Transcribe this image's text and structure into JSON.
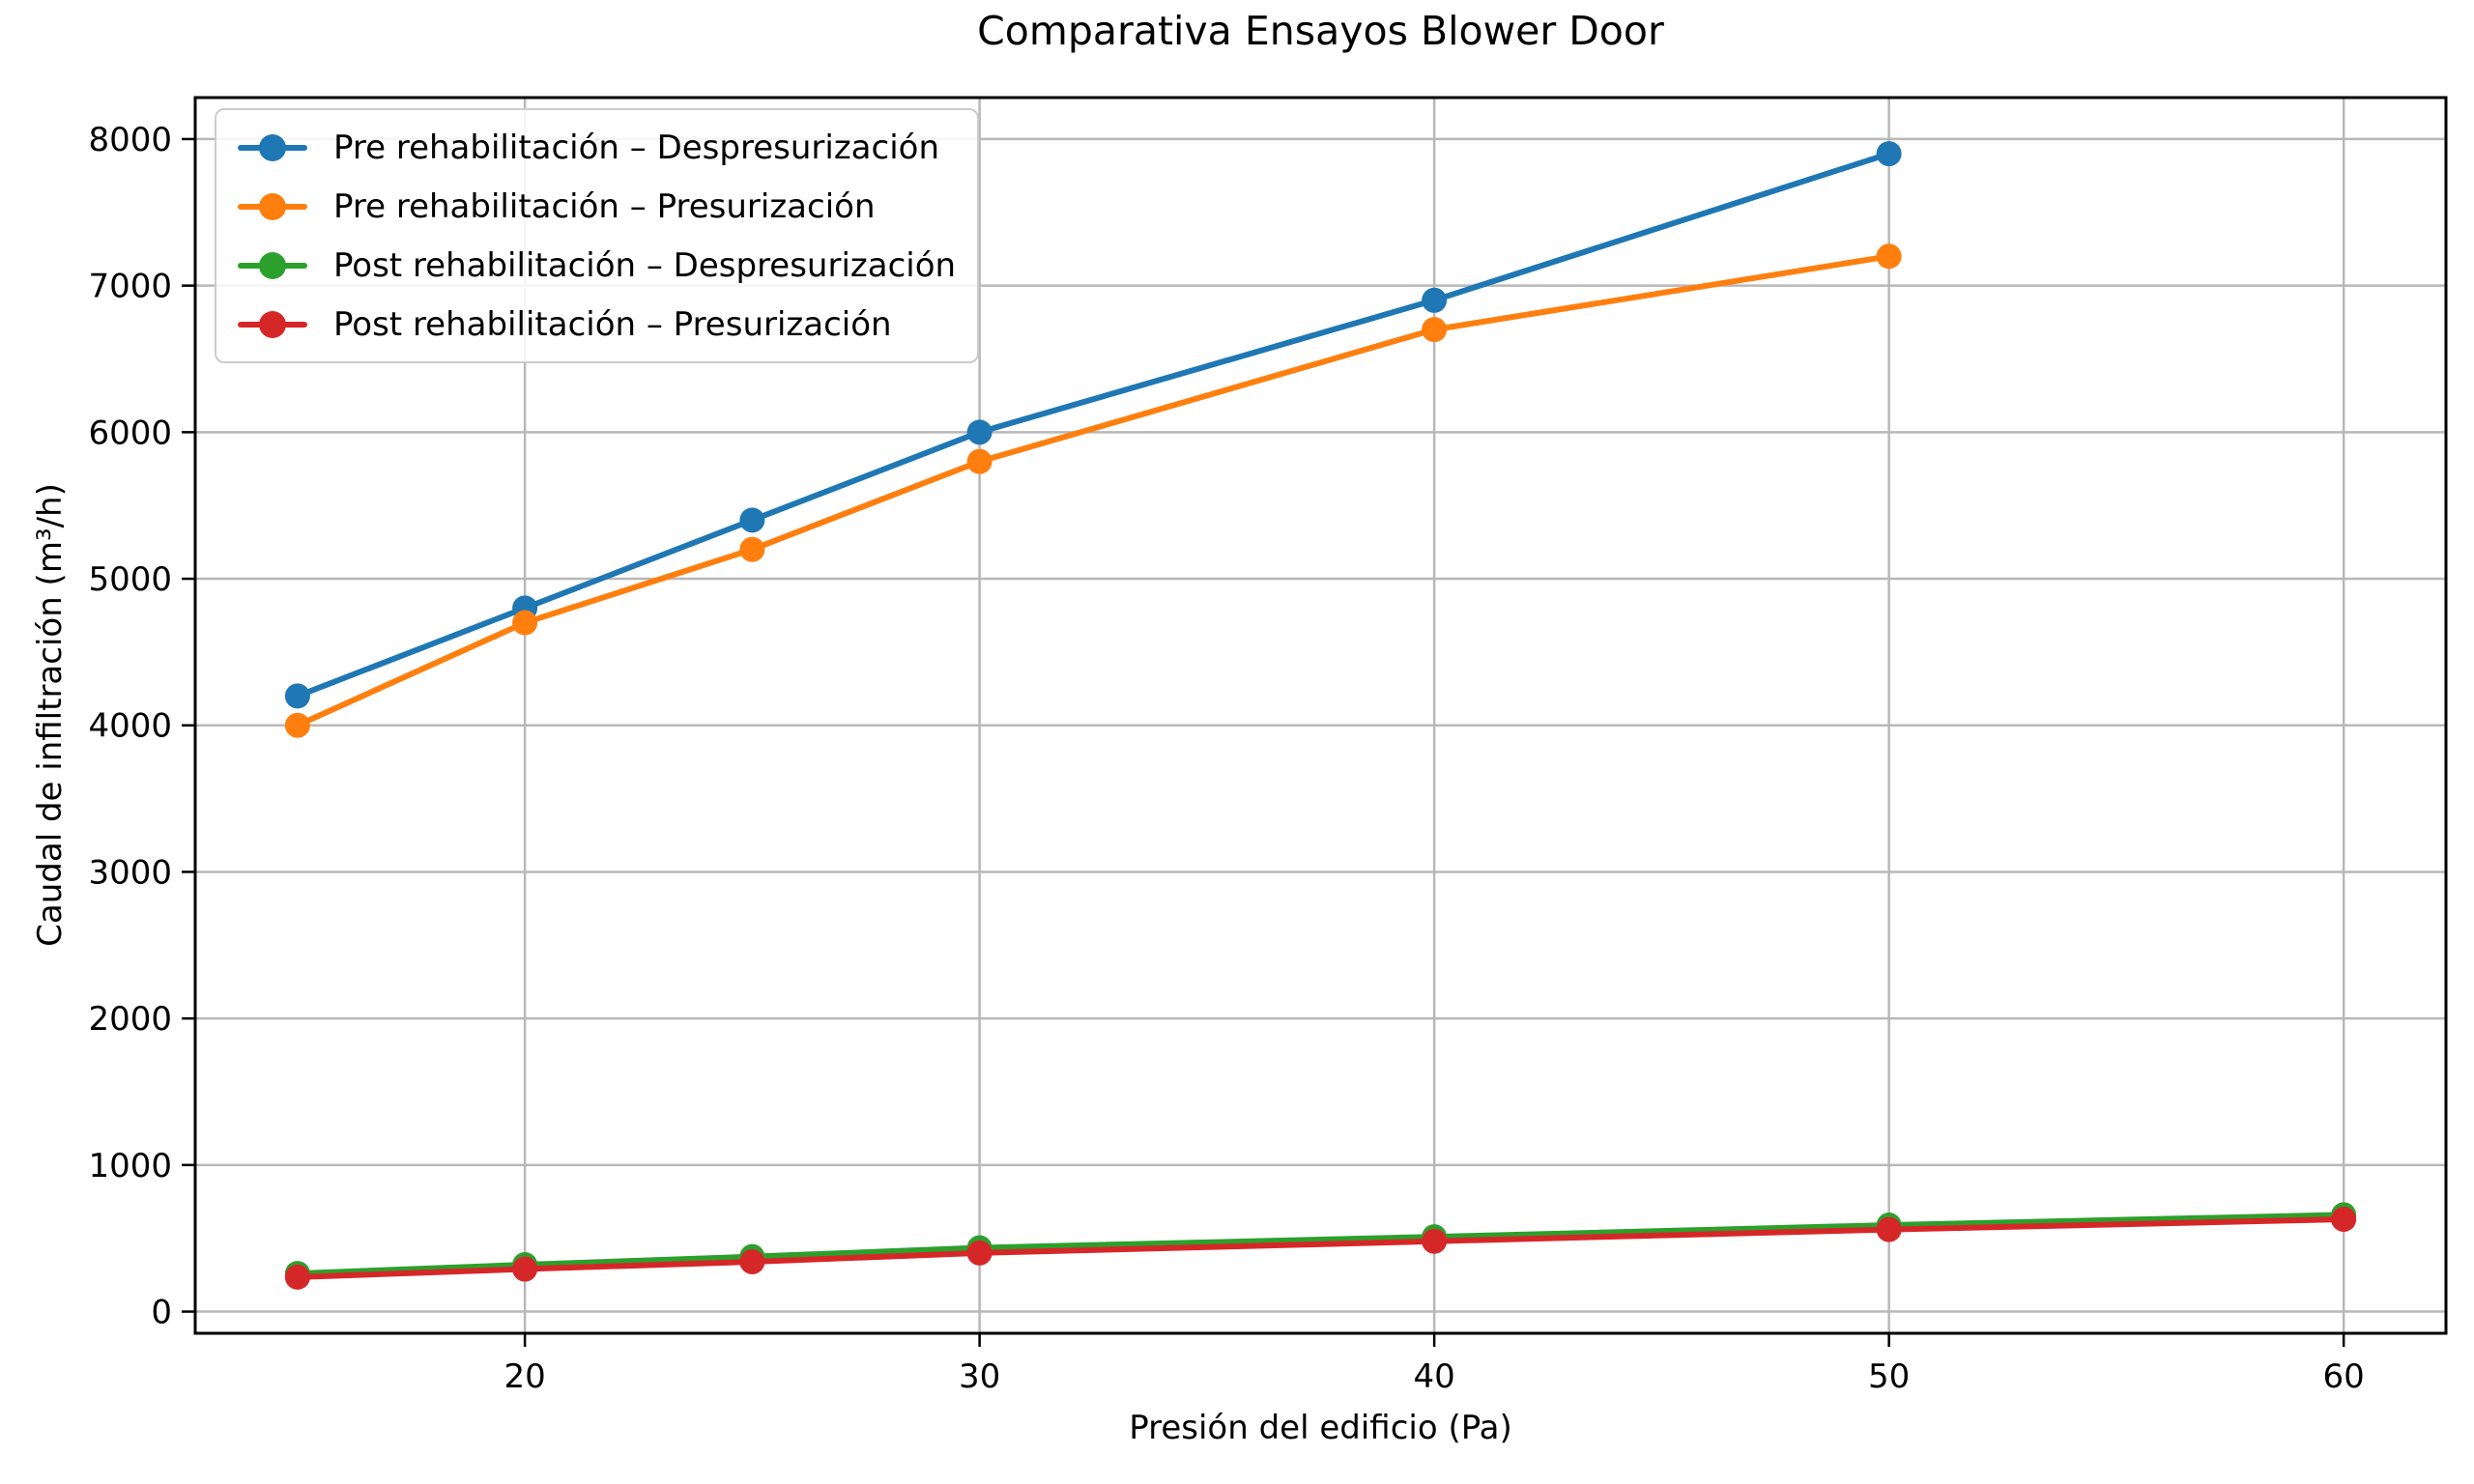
{
  "page": {
    "background": "#ffffff"
  },
  "chart_data": {
    "type": "line",
    "title": "Comparativa Ensayos Blower Door",
    "xlabel": "Presión del edificio (Pa)",
    "ylabel": "Caudal de infiltración (m³/h)",
    "x_ticks": [
      20,
      30,
      40,
      50,
      60
    ],
    "y_ticks": [
      0,
      1000,
      2000,
      3000,
      4000,
      5000,
      6000,
      7000,
      8000
    ],
    "xlim": [
      12.75,
      62.25
    ],
    "ylim": [
      -148,
      8283
    ],
    "grid": true,
    "grid_color": "#b8b8b8",
    "axis_color": "#000000",
    "legend_position": "upper-left",
    "series": [
      {
        "name": "Pre rehabilitación – Despresurización",
        "color": "#1f77b4",
        "x": [
          15,
          20,
          25,
          30,
          40,
          50
        ],
        "y": [
          4200,
          4800,
          5400,
          6000,
          6900,
          7900
        ]
      },
      {
        "name": "Pre rehabilitación – Presurización",
        "color": "#ff7f0e",
        "x": [
          15,
          20,
          25,
          30,
          40,
          50
        ],
        "y": [
          4000,
          4700,
          5200,
          5800,
          6700,
          7200
        ]
      },
      {
        "name": "Post rehabilitación – Despresurización",
        "color": "#2ca02c",
        "x": [
          15,
          20,
          25,
          30,
          40,
          50,
          60
        ],
        "y": [
          260,
          320,
          375,
          435,
          510,
          590,
          660
        ]
      },
      {
        "name": "Post rehabilitación – Presurización",
        "color": "#d62728",
        "x": [
          15,
          20,
          25,
          30,
          40,
          50,
          60
        ],
        "y": [
          235,
          290,
          340,
          400,
          480,
          560,
          630
        ]
      }
    ]
  }
}
